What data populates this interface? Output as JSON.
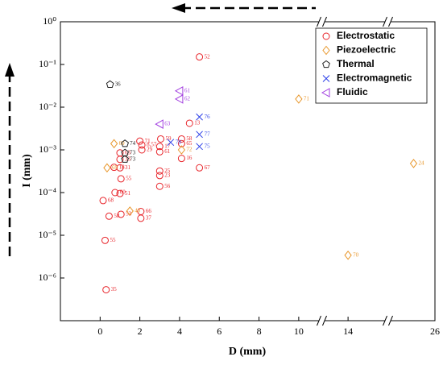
{
  "chart_data": {
    "type": "scatter",
    "xlabel": "D (mm)",
    "ylabel": "I (mm)",
    "log_y": true,
    "ylim": [
      1e-07,
      1
    ],
    "yticks": [
      {
        "value": 1,
        "label": "10⁰"
      },
      {
        "value": 0.1,
        "label": "10⁻¹"
      },
      {
        "value": 0.01,
        "label": "10⁻²"
      },
      {
        "value": 0.001,
        "label": "10⁻³"
      },
      {
        "value": 0.0001,
        "label": "10⁻⁴"
      },
      {
        "value": 1e-05,
        "label": "10⁻⁵"
      },
      {
        "value": 1e-06,
        "label": "10⁻⁶"
      }
    ],
    "xlim": [
      -2,
      26
    ],
    "xsegments": [
      [
        -2,
        11.1
      ],
      [
        12.7,
        16
      ],
      [
        21.7,
        26
      ]
    ],
    "xticks": [
      0,
      2,
      4,
      6,
      8,
      10,
      14,
      26
    ],
    "legend": "upper right",
    "series": [
      {
        "name": "Electrostatic",
        "color": "#e8242a",
        "marker": "circle",
        "x": [
          5.0,
          4.5,
          4.1,
          4.1,
          5.0,
          4.1,
          3.05,
          3.0,
          3.0,
          2.1,
          2.1,
          2.0,
          1.0,
          1.0,
          0.7,
          1.0,
          1.05,
          0.75,
          1.0,
          0.15,
          3.0,
          3.0,
          3.0,
          0.45,
          1.05,
          2.05,
          2.05,
          0.25,
          0.3
        ],
        "values": [
          0.15,
          0.0042,
          0.0018,
          0.0014,
          0.00038,
          0.00063,
          0.0018,
          0.0012,
          0.0009,
          0.001,
          0.0013,
          0.0016,
          0.00085,
          0.0006,
          0.00039,
          0.00038,
          0.00021,
          0.0001,
          9.5e-05,
          6.5e-05,
          0.00032,
          0.00025,
          0.00014,
          2.8e-05,
          3.1e-05,
          3.6e-05,
          2.5e-05,
          7.6e-06,
          5.3e-07
        ],
        "labels": [
          "52",
          "13",
          "58",
          "65",
          "67",
          "16",
          "59",
          "17",
          "61",
          "29",
          "8,57",
          "71",
          "63",
          "33",
          "18",
          "31",
          "55",
          "60",
          "51",
          "68",
          "25",
          "23",
          "56",
          "58",
          "53",
          "66",
          "37",
          "55",
          "35"
        ]
      },
      {
        "name": "Piezoelectric",
        "color": "#e8962a",
        "marker": "diamond",
        "x": [
          10,
          0.7,
          0.35,
          4.1,
          1.5,
          14,
          24
        ],
        "values": [
          0.0155,
          0.0014,
          0.00038,
          0.001,
          3.7e-05,
          3.4e-06,
          0.00048
        ],
        "labels": [
          "71",
          "69",
          "69",
          "72",
          "40",
          "70",
          "24"
        ]
      },
      {
        "name": "Thermal",
        "color": "#222222",
        "marker": "pentagon",
        "x": [
          0.5,
          1.25,
          1.25,
          1.25
        ],
        "values": [
          0.034,
          0.0014,
          0.00085,
          0.0006
        ],
        "labels": [
          "36",
          "74",
          "73",
          "73"
        ]
      },
      {
        "name": "Electromagnetic",
        "color": "#2a3ee8",
        "marker": "cross",
        "x": [
          5.0,
          5.0,
          5.0,
          3.55
        ],
        "values": [
          0.0059,
          0.0023,
          0.0012,
          0.0015
        ],
        "labels": [
          "76",
          "77",
          "75",
          "78"
        ]
      },
      {
        "name": "Fluidic",
        "color": "#a23fe0",
        "marker": "triangle-left",
        "x": [
          4.0,
          4.0,
          3.0
        ],
        "values": [
          0.024,
          0.0155,
          0.004
        ],
        "labels": [
          "61",
          "62",
          "63"
        ]
      }
    ]
  }
}
